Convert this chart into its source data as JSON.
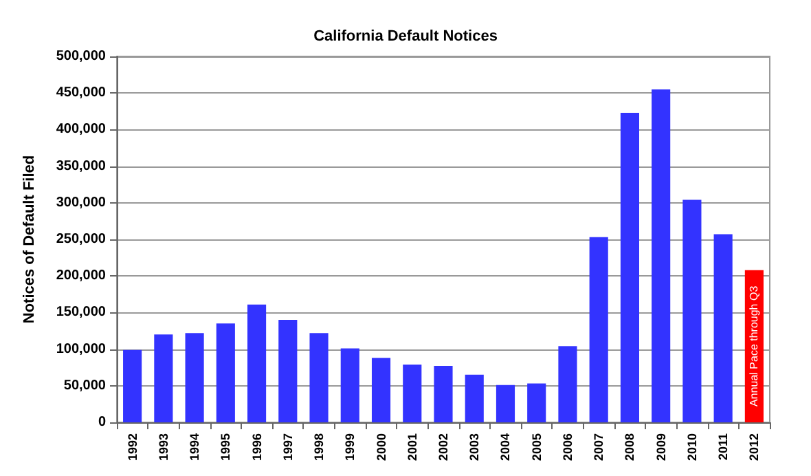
{
  "chart_data": {
    "type": "bar",
    "title": "California Default Notices",
    "ylabel": "Notices of Default Filed",
    "categories": [
      "1992",
      "1993",
      "1994",
      "1995",
      "1996",
      "1997",
      "1998",
      "1999",
      "2000",
      "2001",
      "2002",
      "2003",
      "2004",
      "2005",
      "2006",
      "2007",
      "2008",
      "2009",
      "2010",
      "2011",
      "2012"
    ],
    "values": [
      99000,
      120000,
      122000,
      135000,
      161000,
      140000,
      122000,
      101000,
      88000,
      79000,
      77000,
      65000,
      51000,
      53000,
      104000,
      253000,
      423000,
      455000,
      304000,
      257000,
      208000
    ],
    "colors": [
      "#3333ff",
      "#3333ff",
      "#3333ff",
      "#3333ff",
      "#3333ff",
      "#3333ff",
      "#3333ff",
      "#3333ff",
      "#3333ff",
      "#3333ff",
      "#3333ff",
      "#3333ff",
      "#3333ff",
      "#3333ff",
      "#3333ff",
      "#3333ff",
      "#3333ff",
      "#3333ff",
      "#3333ff",
      "#3333ff",
      "#ff0000"
    ],
    "ylim": [
      0,
      500000
    ],
    "yticks": [
      0,
      {
        "value": 50000,
        "label": "50,000"
      },
      {
        "value": 100000,
        "label": "100,000"
      },
      {
        "value": 150000,
        "label": "150,000"
      },
      {
        "value": 200000,
        "label": "200,000"
      },
      {
        "value": 250000,
        "label": "250,000"
      },
      {
        "value": 300000,
        "label": "300,000"
      },
      {
        "value": 350000,
        "label": "350,000"
      },
      {
        "value": 400000,
        "label": "400,000"
      },
      {
        "value": 450000,
        "label": "450,000"
      },
      {
        "value": 500000,
        "label": "500,000"
      }
    ],
    "grid": "y",
    "annotations": [
      "Annual Pace through Q3"
    ]
  }
}
